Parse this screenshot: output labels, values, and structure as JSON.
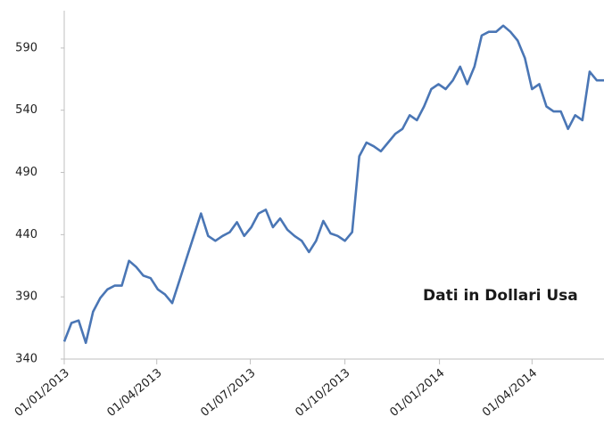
{
  "chart_data": {
    "type": "line",
    "annotation": "Dati in Dollari Usa",
    "x": [
      "2013-01-01",
      "2013-01-08",
      "2013-01-15",
      "2013-01-22",
      "2013-01-29",
      "2013-02-05",
      "2013-02-12",
      "2013-02-19",
      "2013-02-26",
      "2013-03-05",
      "2013-03-12",
      "2013-03-19",
      "2013-03-26",
      "2013-04-02",
      "2013-04-09",
      "2013-04-16",
      "2013-04-23",
      "2013-04-30",
      "2013-05-07",
      "2013-05-14",
      "2013-05-21",
      "2013-05-28",
      "2013-06-04",
      "2013-06-11",
      "2013-06-18",
      "2013-06-25",
      "2013-07-02",
      "2013-07-09",
      "2013-07-16",
      "2013-07-23",
      "2013-07-30",
      "2013-08-06",
      "2013-08-13",
      "2013-08-20",
      "2013-08-27",
      "2013-09-03",
      "2013-09-10",
      "2013-09-17",
      "2013-09-24",
      "2013-10-01",
      "2013-10-08",
      "2013-10-15",
      "2013-10-22",
      "2013-10-29",
      "2013-11-05",
      "2013-11-12",
      "2013-11-19",
      "2013-11-26",
      "2013-12-03",
      "2013-12-10",
      "2013-12-17",
      "2013-12-24",
      "2013-12-31",
      "2014-01-07",
      "2014-01-14",
      "2014-01-21",
      "2014-01-28",
      "2014-02-04",
      "2014-02-11",
      "2014-02-18",
      "2014-02-25",
      "2014-03-04",
      "2014-03-11",
      "2014-03-18",
      "2014-03-25",
      "2014-04-01",
      "2014-04-08",
      "2014-04-15",
      "2014-04-22",
      "2014-04-29",
      "2014-05-06",
      "2014-05-13",
      "2014-05-20",
      "2014-05-27",
      "2014-06-03",
      "2014-06-10"
    ],
    "series": [
      {
        "color": "#4a76b5",
        "values": [
          354,
          369,
          371,
          353,
          378,
          389,
          396,
          399,
          399,
          419,
          414,
          407,
          405,
          396,
          392,
          385,
          403,
          421,
          439,
          457,
          439,
          435,
          439,
          442,
          450,
          439,
          446,
          457,
          460,
          446,
          453,
          444,
          439,
          435,
          426,
          435,
          451,
          441,
          439,
          435,
          442,
          503,
          514,
          511,
          507,
          514,
          521,
          525,
          536,
          532,
          543,
          557,
          561,
          557,
          564,
          575,
          561,
          575,
          600,
          603,
          603,
          608,
          603,
          596,
          582,
          557,
          561,
          543,
          539,
          539,
          525,
          536,
          532,
          571,
          564,
          564
        ]
      }
    ],
    "xlim": [
      "2013-01-01",
      "2014-06-10"
    ],
    "xticks": [
      {
        "value": "2013-01-01",
        "label": "01/01/2013"
      },
      {
        "value": "2013-04-01",
        "label": "01/04/2013"
      },
      {
        "value": "2013-07-01",
        "label": "01/07/2013"
      },
      {
        "value": "2013-10-01",
        "label": "01/10/2013"
      },
      {
        "value": "2014-01-01",
        "label": "01/01/2014"
      },
      {
        "value": "2014-04-01",
        "label": "01/04/2014"
      }
    ],
    "ylim": [
      340,
      620
    ],
    "yticks": [
      340,
      390,
      440,
      490,
      540,
      590
    ],
    "grid": false
  }
}
